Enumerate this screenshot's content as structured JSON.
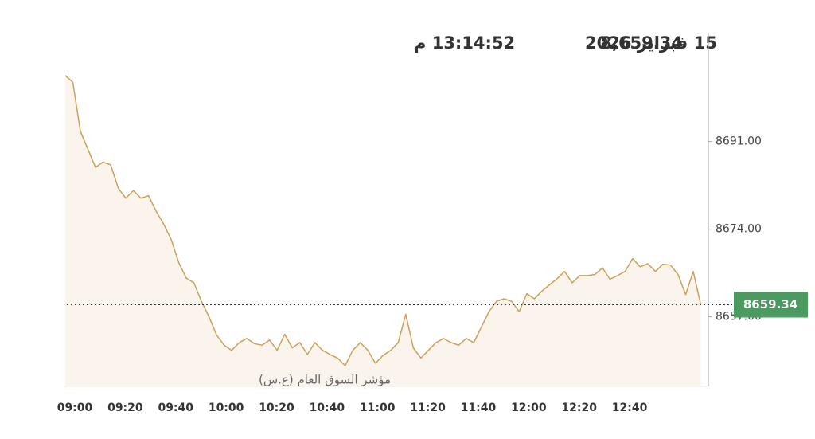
{
  "header": {
    "value": "8,659.34",
    "date": "15 فبراير 2026",
    "time": "13:14:52 م"
  },
  "chart_data": {
    "type": "line",
    "name": "مؤشر السوق العام (ع.س)",
    "color": "#c9a25a",
    "fill": "#fbf4ec",
    "x": [
      "09:00",
      "09:03",
      "09:06",
      "09:09",
      "09:12",
      "09:15",
      "09:18",
      "09:21",
      "09:24",
      "09:27",
      "09:30",
      "09:33",
      "09:36",
      "09:39",
      "09:42",
      "09:45",
      "09:48",
      "09:51",
      "09:54",
      "09:57",
      "10:00",
      "10:03",
      "10:06",
      "10:09",
      "10:12",
      "10:15",
      "10:18",
      "10:21",
      "10:24",
      "10:27",
      "10:30",
      "10:33",
      "10:36",
      "10:39",
      "10:42",
      "10:45",
      "10:48",
      "10:51",
      "10:54",
      "10:57",
      "11:00",
      "11:03",
      "11:06",
      "11:09",
      "11:12",
      "11:15",
      "11:18",
      "11:21",
      "11:24",
      "11:27",
      "11:30",
      "11:33",
      "11:36",
      "11:39",
      "11:42",
      "11:45",
      "11:48",
      "11:51",
      "11:54",
      "11:57",
      "12:00",
      "12:03",
      "12:06",
      "12:09",
      "12:12",
      "12:15",
      "12:18",
      "12:21",
      "12:24",
      "12:27",
      "12:30",
      "12:33",
      "12:36",
      "12:39",
      "12:42",
      "12:45",
      "12:48",
      "12:51",
      "12:54",
      "12:57",
      "13:00",
      "13:03",
      "13:06",
      "13:09",
      "13:12"
    ],
    "values": [
      8703.8,
      8702.5,
      8693,
      8689.5,
      8686,
      8687,
      8686.5,
      8682,
      8680,
      8681.5,
      8680,
      8680.5,
      8677.5,
      8675,
      8672,
      8667.5,
      8664.5,
      8663.6,
      8660,
      8657,
      8653.5,
      8651.5,
      8650.5,
      8652,
      8652.8,
      8651.8,
      8651.5,
      8652.5,
      8650.5,
      8653.6,
      8651,
      8652,
      8649.7,
      8652,
      8650.5,
      8649.7,
      8649,
      8647.5,
      8650.5,
      8652,
      8650.5,
      8648,
      8649.5,
      8650.5,
      8652,
      8657.5,
      8651,
      8649,
      8650.5,
      8652,
      8652.8,
      8652,
      8651.5,
      8652.8,
      8652,
      8655,
      8658,
      8660,
      8660.5,
      8660,
      8658,
      8661.5,
      8660.5,
      8662,
      8663.2,
      8664.4,
      8665.8,
      8663.6,
      8665,
      8665,
      8665.2,
      8666.5,
      8664.3,
      8665,
      8665.8,
      8668.3,
      8666.7,
      8667.3,
      8665.8,
      8667.2,
      8667,
      8665.2,
      8661.3,
      8665.8,
      8659.34
    ],
    "last": 8659.34,
    "xlim": [
      "09:00",
      "13:15"
    ],
    "xticks": [
      "09:00",
      "09:20",
      "09:40",
      "10:00",
      "10:20",
      "10:40",
      "11:00",
      "11:20",
      "11:40",
      "12:00",
      "12:20",
      "12:40"
    ],
    "ylim": [
      8643.5,
      8711.5
    ],
    "yticks": [
      {
        "value": 8691,
        "label": "8691.00"
      },
      {
        "value": 8674,
        "label": "8674.00"
      },
      {
        "value": 8657,
        "label": "8657.00"
      }
    ],
    "badge_color": "#4b9a60"
  }
}
